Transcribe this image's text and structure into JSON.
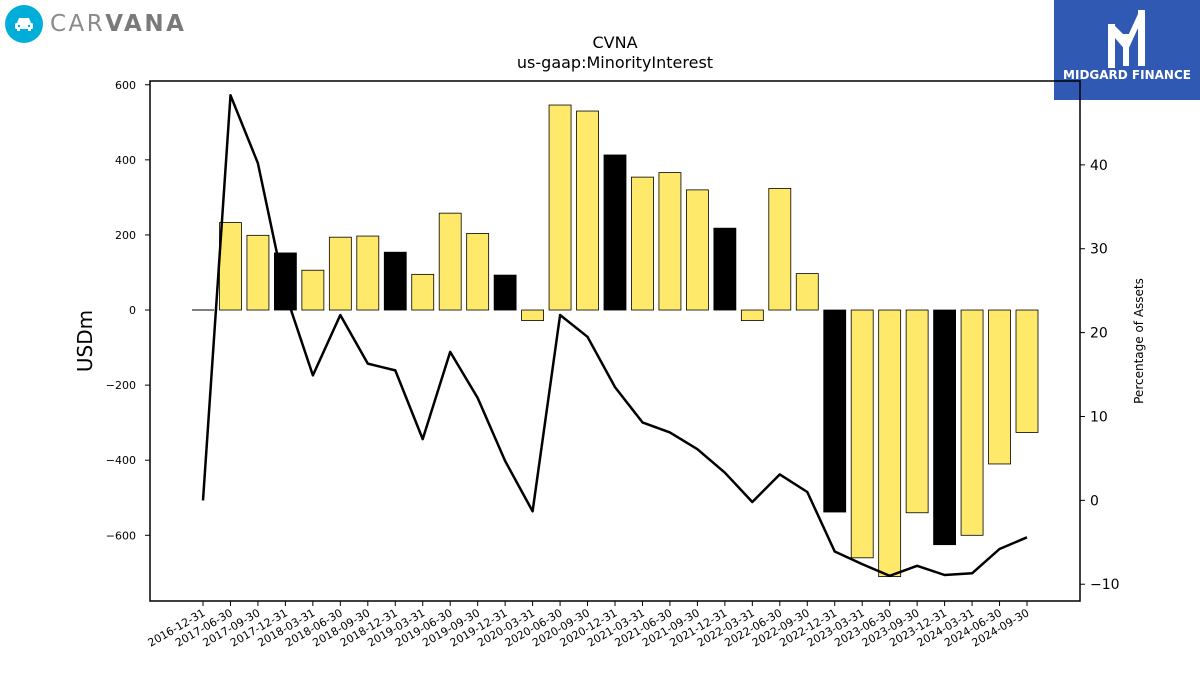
{
  "brand": {
    "name_light": "CAR",
    "name_bold": "VANA",
    "logo_icon": "car-icon"
  },
  "sponsor": {
    "name": "MIDGARD FINANCE",
    "logo_icon": "mf-monogram-icon"
  },
  "colors": {
    "bar_default": "#ffe96a",
    "bar_highlight": "#000000",
    "line": "#000000"
  },
  "chart_data": {
    "type": "bar",
    "title": "CVNA",
    "subtitle": "us-gaap:MinorityInterest",
    "ylabel": "USDm",
    "y2label": "Percentage of Assets",
    "ylim": [
      -775,
      610
    ],
    "y2lim": [
      -12,
      50
    ],
    "yticks": [
      600,
      400,
      200,
      0,
      -200,
      -400,
      -600
    ],
    "y2ticks": [
      40,
      30,
      20,
      10,
      0,
      -10
    ],
    "ytick_labels": [
      "600",
      "400",
      "200",
      "0",
      "−200",
      "−400",
      "−600"
    ],
    "y2tick_labels": [
      "40",
      "30",
      "20",
      "10",
      "0",
      "−10"
    ],
    "categories": [
      "2016-12-31",
      "2017-06-30",
      "2017-09-30",
      "2017-12-31",
      "2018-03-31",
      "2018-06-30",
      "2018-09-30",
      "2018-12-31",
      "2019-03-31",
      "2019-06-30",
      "2019-09-30",
      "2019-12-31",
      "2020-03-31",
      "2020-06-30",
      "2020-09-30",
      "2020-12-31",
      "2021-03-31",
      "2021-06-30",
      "2021-09-30",
      "2021-12-31",
      "2022-03-31",
      "2022-06-30",
      "2022-09-30",
      "2022-12-31",
      "2023-03-31",
      "2023-06-30",
      "2023-09-30",
      "2023-12-31",
      "2024-03-31",
      "2024-06-30",
      "2024-09-30"
    ],
    "series": [
      {
        "type": "bar",
        "axis": "left",
        "values": [
          0,
          233,
          199,
          152,
          106,
          194,
          197,
          154,
          95,
          258,
          204,
          93,
          -28,
          546,
          530,
          413,
          354,
          366,
          320,
          218,
          -28,
          324,
          97,
          -538,
          -660,
          -710,
          -540,
          -625,
          -600,
          -410,
          -326
        ],
        "highlight": [
          false,
          false,
          false,
          true,
          false,
          false,
          false,
          true,
          false,
          false,
          false,
          true,
          false,
          false,
          false,
          true,
          false,
          false,
          false,
          true,
          false,
          false,
          false,
          true,
          false,
          false,
          false,
          true,
          false,
          false,
          false
        ]
      },
      {
        "type": "line",
        "axis": "right",
        "values": [
          0,
          48.3,
          40.2,
          24.7,
          14.9,
          22.1,
          16.3,
          15.5,
          7.3,
          17.7,
          12.2,
          4.7,
          -1.3,
          22.1,
          19.5,
          13.5,
          9.3,
          8.1,
          6.1,
          3.3,
          -0.2,
          3.1,
          1.0,
          -6.1,
          -7.6,
          -9.0,
          -7.8,
          -8.9,
          -8.7,
          -5.8,
          -4.4
        ]
      }
    ]
  }
}
